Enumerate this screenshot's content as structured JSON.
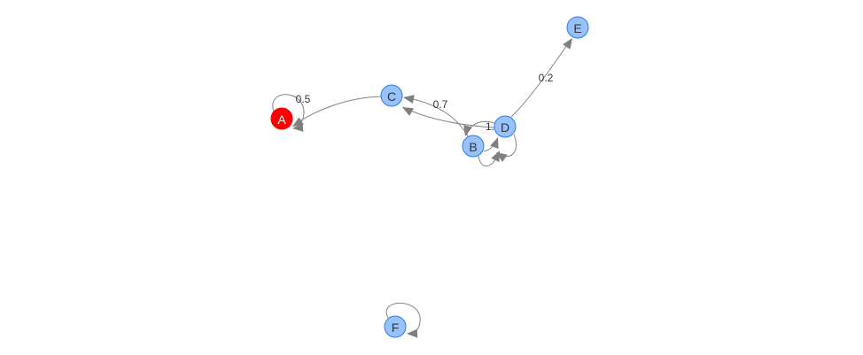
{
  "graph": {
    "colors": {
      "node_fill": "#97c2fc",
      "node_border": "#2b7ce9",
      "node_label": "#343434",
      "selected_fill": "#ff0000",
      "selected_border": "#ff0000",
      "selected_label": "#ffffff",
      "edge": "#848484",
      "arrow": "#7f7f7f"
    },
    "nodes": [
      {
        "id": "A",
        "label": "A",
        "selected": true
      },
      {
        "id": "B",
        "label": "B",
        "selected": false
      },
      {
        "id": "C",
        "label": "C",
        "selected": false
      },
      {
        "id": "D",
        "label": "D",
        "selected": false
      },
      {
        "id": "E",
        "label": "E",
        "selected": false
      },
      {
        "id": "F",
        "label": "F",
        "selected": false
      }
    ],
    "edges": [
      {
        "from": "A",
        "to": "A",
        "label": "0.5",
        "directed": true
      },
      {
        "from": "C",
        "to": "A",
        "label": "",
        "directed": true
      },
      {
        "from": "B",
        "to": "C",
        "label": "0.7",
        "directed": true
      },
      {
        "from": "D",
        "to": "C",
        "label": "",
        "directed": true
      },
      {
        "from": "D",
        "to": "E",
        "label": "0.2",
        "directed": true
      },
      {
        "from": "D",
        "to": "B",
        "label": "1.",
        "directed": true
      },
      {
        "from": "B",
        "to": "D",
        "label": "",
        "directed": true
      },
      {
        "from": "B",
        "to": "B",
        "label": "",
        "directed": true
      },
      {
        "from": "D",
        "to": "D",
        "label": "",
        "directed": true
      },
      {
        "from": "F",
        "to": "F",
        "label": "",
        "directed": true
      }
    ]
  }
}
